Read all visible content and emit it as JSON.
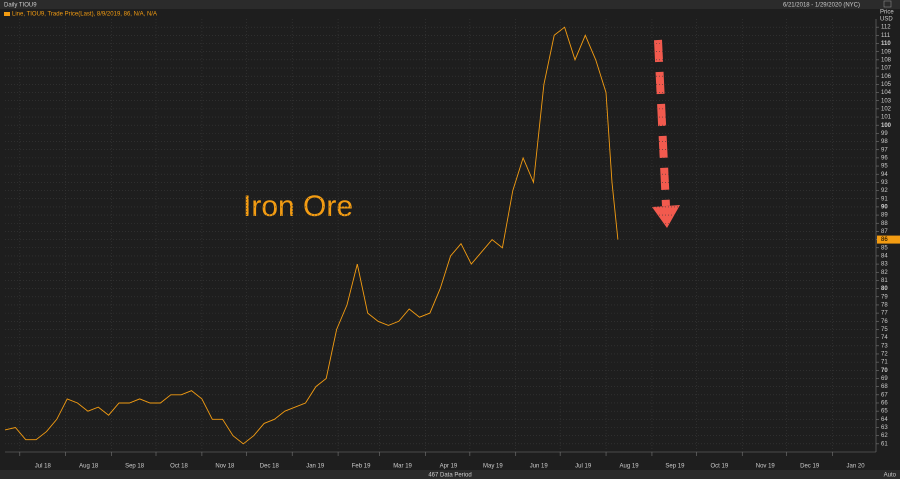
{
  "header": {
    "title": "Daily TIOU9",
    "range": "6/21/2018 - 1/29/2020 (NYC)",
    "axis_title": "Price",
    "axis_unit": "USD",
    "data_period": "467 Data Period",
    "scale_mode": "Auto"
  },
  "chart_data": {
    "type": "line",
    "annotation": "Iron Ore",
    "x": [
      "2018-06-21",
      "2018-06-28",
      "2018-07-05",
      "2018-07-12",
      "2018-07-19",
      "2018-07-26",
      "2018-08-02",
      "2018-08-09",
      "2018-08-16",
      "2018-08-23",
      "2018-08-30",
      "2018-09-06",
      "2018-09-13",
      "2018-09-20",
      "2018-09-27",
      "2018-10-04",
      "2018-10-11",
      "2018-10-18",
      "2018-10-25",
      "2018-11-01",
      "2018-11-08",
      "2018-11-15",
      "2018-11-22",
      "2018-11-29",
      "2018-12-06",
      "2018-12-13",
      "2018-12-20",
      "2018-12-27",
      "2019-01-03",
      "2019-01-10",
      "2019-01-17",
      "2019-01-24",
      "2019-01-31",
      "2019-02-07",
      "2019-02-14",
      "2019-02-21",
      "2019-02-28",
      "2019-03-07",
      "2019-03-14",
      "2019-03-21",
      "2019-03-28",
      "2019-04-04",
      "2019-04-11",
      "2019-04-18",
      "2019-04-25",
      "2019-05-02",
      "2019-05-09",
      "2019-05-16",
      "2019-05-23",
      "2019-05-30",
      "2019-06-06",
      "2019-06-13",
      "2019-06-20",
      "2019-06-27",
      "2019-07-04",
      "2019-07-11",
      "2019-07-18",
      "2019-07-25",
      "2019-08-01",
      "2019-08-05",
      "2019-08-09"
    ],
    "series": [
      {
        "name": "Line, TIOU9, Trade Price(Last), 8/9/2019, 86, N/A, N/A",
        "color": "#f39c12",
        "values": [
          62.7,
          63,
          61.5,
          61.5,
          62.5,
          64,
          66.5,
          66,
          65,
          65.5,
          64.5,
          66,
          66,
          66.5,
          66,
          66,
          67,
          67,
          67.5,
          66.5,
          64,
          64,
          62,
          61,
          62,
          63.5,
          64,
          65,
          65.5,
          66,
          68,
          69,
          75,
          78,
          83,
          77,
          76,
          75.5,
          76,
          77.5,
          76.5,
          77,
          80,
          84,
          85.5,
          83,
          84.5,
          86,
          85,
          92,
          96,
          93,
          105,
          111,
          112,
          108,
          111,
          108,
          104,
          93,
          86
        ],
        "last_label": "86"
      }
    ],
    "xlim": [
      "2018-06-21",
      "2020-01-29"
    ],
    "xticks": [
      {
        "value": "2018-07-01",
        "label": "Jul 18"
      },
      {
        "value": "2018-08-01",
        "label": "Aug 18"
      },
      {
        "value": "2018-09-01",
        "label": "Sep 18"
      },
      {
        "value": "2018-10-01",
        "label": "Oct 18"
      },
      {
        "value": "2018-11-01",
        "label": "Nov 18"
      },
      {
        "value": "2018-12-01",
        "label": "Dec 18"
      },
      {
        "value": "2019-01-01",
        "label": "Jan 19"
      },
      {
        "value": "2019-02-01",
        "label": "Feb 19"
      },
      {
        "value": "2019-03-01",
        "label": "Mar 19"
      },
      {
        "value": "2019-04-01",
        "label": "Apr 19"
      },
      {
        "value": "2019-05-01",
        "label": "May 19"
      },
      {
        "value": "2019-06-01",
        "label": "Jun 19"
      },
      {
        "value": "2019-07-01",
        "label": "Jul 19"
      },
      {
        "value": "2019-08-01",
        "label": "Aug 19"
      },
      {
        "value": "2019-09-01",
        "label": "Sep 19"
      },
      {
        "value": "2019-10-01",
        "label": "Oct 19"
      },
      {
        "value": "2019-11-01",
        "label": "Nov 19"
      },
      {
        "value": "2019-12-01",
        "label": "Dec 19"
      },
      {
        "value": "2020-01-01",
        "label": "Jan 20"
      }
    ],
    "ylim": [
      60,
      113
    ],
    "yticks": [
      61,
      62,
      63,
      64,
      65,
      66,
      67,
      68,
      69,
      70,
      71,
      72,
      73,
      74,
      75,
      76,
      77,
      78,
      79,
      80,
      81,
      82,
      83,
      84,
      85,
      86,
      87,
      88,
      89,
      90,
      91,
      92,
      93,
      94,
      95,
      96,
      97,
      98,
      99,
      100,
      101,
      102,
      103,
      104,
      105,
      106,
      107,
      108,
      109,
      110,
      111,
      112
    ],
    "grid": true
  }
}
